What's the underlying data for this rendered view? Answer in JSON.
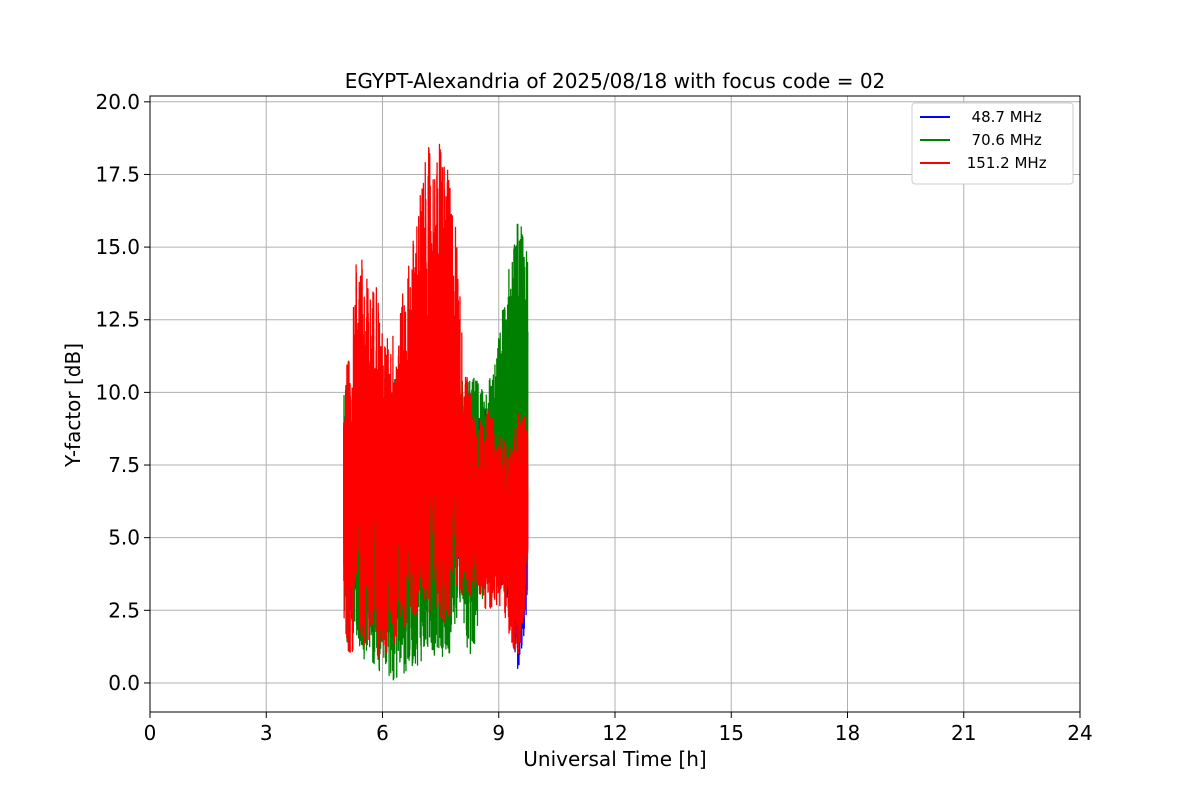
{
  "chart_data": {
    "type": "line",
    "title": "EGYPT-Alexandria of 2025/08/18 with focus code = 02",
    "xlabel": "Universal Time [h]",
    "ylabel": "Y-factor [dB]",
    "xlim": [
      0,
      24
    ],
    "ylim": [
      -1,
      20.2
    ],
    "xticks": [
      0,
      3,
      6,
      9,
      12,
      15,
      18,
      21,
      24
    ],
    "xtick_labels": [
      "0",
      "3",
      "6",
      "9",
      "12",
      "15",
      "18",
      "21",
      "24"
    ],
    "yticks": [
      0,
      2.5,
      5,
      7.5,
      10,
      12.5,
      15,
      17.5,
      20
    ],
    "ytick_labels": [
      "0.0",
      "2.5",
      "5.0",
      "7.5",
      "10.0",
      "12.5",
      "15.0",
      "17.5",
      "20.0"
    ],
    "grid": true,
    "legend_position": "top-right",
    "series": [
      {
        "name": "  48.7 MHz",
        "color": "#0000ff",
        "envelope": {
          "x": [
            5.0,
            5.3,
            5.6,
            5.9,
            6.2,
            6.5,
            6.8,
            7.1,
            7.4,
            7.7,
            8.0,
            8.3,
            8.6,
            8.9,
            9.2,
            9.5,
            9.75
          ],
          "low": [
            2.5,
            2.0,
            1.8,
            1.5,
            1.8,
            2.0,
            2.5,
            3.0,
            3.5,
            3.8,
            4.0,
            4.5,
            4.0,
            3.5,
            3.0,
            0.0,
            2.8
          ],
          "high": [
            10.0,
            9.0,
            9.5,
            9.0,
            9.0,
            10.0,
            11.0,
            11.0,
            11.0,
            10.5,
            10.0,
            9.0,
            9.5,
            9.5,
            8.5,
            8.0,
            8.0
          ]
        }
      },
      {
        "name": "  70.6 MHz",
        "color": "#008000",
        "envelope": {
          "x": [
            5.0,
            5.3,
            5.6,
            5.9,
            6.2,
            6.5,
            6.8,
            7.1,
            7.4,
            7.7,
            8.0,
            8.3,
            8.6,
            8.9,
            9.2,
            9.5,
            9.75
          ],
          "low": [
            1.5,
            1.0,
            0.5,
            0.3,
            0.0,
            0.2,
            0.5,
            0.8,
            1.0,
            0.8,
            2.5,
            0.4,
            3.0,
            3.5,
            3.0,
            2.8,
            3.0
          ],
          "high": [
            11.0,
            10.0,
            11.0,
            11.0,
            10.5,
            11.0,
            11.5,
            11.0,
            10.5,
            10.5,
            10.5,
            10.5,
            10.5,
            11.0,
            14.0,
            16.2,
            14.8
          ]
        }
      },
      {
        "name": " 151.2 MHz",
        "color": "#ff0000",
        "envelope": {
          "x": [
            5.0,
            5.2,
            5.35,
            5.5,
            5.7,
            5.85,
            6.0,
            6.2,
            6.4,
            6.6,
            6.8,
            7.0,
            7.2,
            7.4,
            7.5,
            7.7,
            7.9,
            8.1,
            8.3,
            8.5,
            8.7,
            8.9,
            9.1,
            9.3,
            9.5,
            9.75
          ],
          "low": [
            1.2,
            1.0,
            1.5,
            1.2,
            1.5,
            1.0,
            0.5,
            1.2,
            1.5,
            1.8,
            2.0,
            2.5,
            2.5,
            2.2,
            1.8,
            2.0,
            2.5,
            3.0,
            3.0,
            2.8,
            2.5,
            2.5,
            2.5,
            1.5,
            0.5,
            2.8
          ],
          "high": [
            10.5,
            11.8,
            15.5,
            14.5,
            13.5,
            14.2,
            12.0,
            12.0,
            12.5,
            14.0,
            15.5,
            17.3,
            18.5,
            18.0,
            19.2,
            17.5,
            16.0,
            11.0,
            10.0,
            9.0,
            9.5,
            9.0,
            8.5,
            8.0,
            9.5,
            9.0
          ]
        }
      }
    ]
  }
}
